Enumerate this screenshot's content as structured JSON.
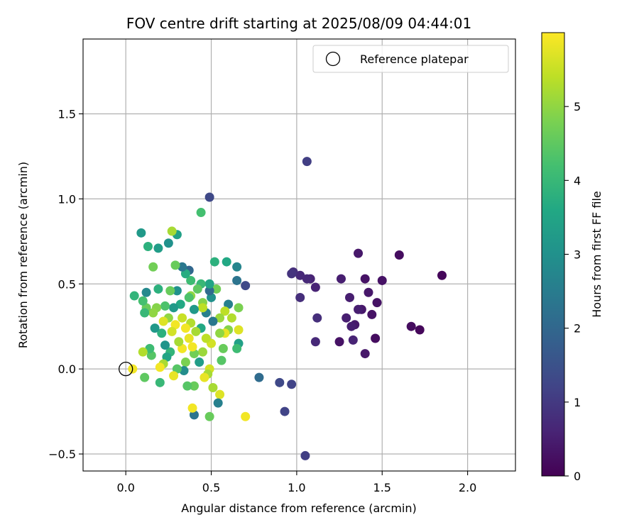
{
  "chart_data": {
    "type": "scatter",
    "title": "FOV centre drift starting at 2025/08/09 04:44:01",
    "xlabel": "Angular distance from reference (arcmin)",
    "ylabel": "Rotation from reference (arcmin)",
    "xlim": [
      -0.25,
      2.28
    ],
    "ylim": [
      -0.6,
      1.94
    ],
    "xticks": [
      0.0,
      0.5,
      1.0,
      1.5,
      2.0
    ],
    "xtick_labels": [
      "0.0",
      "0.5",
      "1.0",
      "1.5",
      "2.0"
    ],
    "yticks": [
      -0.5,
      0.0,
      0.5,
      1.0,
      1.5
    ],
    "ytick_labels": [
      "−0.5",
      "0.0",
      "0.5",
      "1.0",
      "1.5"
    ],
    "grid": true,
    "legend": {
      "position": "top-right",
      "entries": [
        "Reference platepar"
      ]
    },
    "colorbar": {
      "label": "Hours from first FF file",
      "colormap": "viridis",
      "range": [
        0,
        6
      ],
      "ticks": [
        0,
        1,
        2,
        3,
        4,
        5
      ],
      "tick_labels": [
        "0",
        "1",
        "2",
        "3",
        "4",
        "5"
      ]
    },
    "reference": {
      "x": 0.0,
      "y": 0.0
    },
    "points": [
      {
        "x": 1.85,
        "y": 0.55,
        "h": 0.1
      },
      {
        "x": 1.72,
        "y": 0.23,
        "h": 0.1
      },
      {
        "x": 1.67,
        "y": 0.25,
        "h": 0.2
      },
      {
        "x": 1.6,
        "y": 0.67,
        "h": 0.2
      },
      {
        "x": 1.5,
        "y": 0.52,
        "h": 0.3
      },
      {
        "x": 1.47,
        "y": 0.39,
        "h": 0.3
      },
      {
        "x": 1.46,
        "y": 0.18,
        "h": 0.2
      },
      {
        "x": 1.44,
        "y": 0.32,
        "h": 0.3
      },
      {
        "x": 1.42,
        "y": 0.45,
        "h": 0.4
      },
      {
        "x": 1.4,
        "y": 0.53,
        "h": 0.3
      },
      {
        "x": 1.4,
        "y": 0.09,
        "h": 0.4
      },
      {
        "x": 1.38,
        "y": 0.35,
        "h": 0.4
      },
      {
        "x": 1.36,
        "y": 0.35,
        "h": 0.5
      },
      {
        "x": 1.36,
        "y": 0.68,
        "h": 0.4
      },
      {
        "x": 1.34,
        "y": 0.26,
        "h": 0.4
      },
      {
        "x": 1.33,
        "y": 0.17,
        "h": 0.6
      },
      {
        "x": 1.32,
        "y": 0.25,
        "h": 0.5
      },
      {
        "x": 1.31,
        "y": 0.42,
        "h": 0.5
      },
      {
        "x": 1.29,
        "y": 0.3,
        "h": 0.5
      },
      {
        "x": 1.26,
        "y": 0.53,
        "h": 0.5
      },
      {
        "x": 1.25,
        "y": 0.16,
        "h": 0.3
      },
      {
        "x": 1.12,
        "y": 0.3,
        "h": 0.8
      },
      {
        "x": 1.11,
        "y": 0.48,
        "h": 0.6
      },
      {
        "x": 1.11,
        "y": 0.16,
        "h": 0.7
      },
      {
        "x": 1.08,
        "y": 0.53,
        "h": 0.6
      },
      {
        "x": 1.06,
        "y": 0.53,
        "h": 0.7
      },
      {
        "x": 1.06,
        "y": 1.22,
        "h": 1.1
      },
      {
        "x": 1.02,
        "y": 0.55,
        "h": 0.7
      },
      {
        "x": 1.02,
        "y": 0.42,
        "h": 0.8
      },
      {
        "x": 0.98,
        "y": 0.57,
        "h": 0.8
      },
      {
        "x": 0.97,
        "y": 0.56,
        "h": 0.9
      },
      {
        "x": 1.05,
        "y": -0.51,
        "h": 1.1
      },
      {
        "x": 0.97,
        "y": -0.09,
        "h": 1.2
      },
      {
        "x": 0.93,
        "y": -0.25,
        "h": 1.2
      },
      {
        "x": 0.9,
        "y": -0.08,
        "h": 1.3
      },
      {
        "x": 0.78,
        "y": -0.05,
        "h": 2.1
      },
      {
        "x": 0.7,
        "y": 0.49,
        "h": 1.3
      },
      {
        "x": 0.7,
        "y": -0.28,
        "h": 5.9
      },
      {
        "x": 0.65,
        "y": 0.6,
        "h": 2.7
      },
      {
        "x": 0.65,
        "y": 0.52,
        "h": 2.3
      },
      {
        "x": 0.66,
        "y": 0.15,
        "h": 3.4
      },
      {
        "x": 0.66,
        "y": 0.36,
        "h": 4.8
      },
      {
        "x": 0.65,
        "y": 0.12,
        "h": 4.1
      },
      {
        "x": 0.66,
        "y": 0.23,
        "h": 5.7
      },
      {
        "x": 0.6,
        "y": 0.38,
        "h": 2.6
      },
      {
        "x": 0.6,
        "y": 0.23,
        "h": 4.9
      },
      {
        "x": 0.62,
        "y": 0.3,
        "h": 5.3
      },
      {
        "x": 0.59,
        "y": 0.63,
        "h": 3.6
      },
      {
        "x": 0.58,
        "y": 0.34,
        "h": 5.4
      },
      {
        "x": 0.58,
        "y": 0.21,
        "h": 5.8
      },
      {
        "x": 0.57,
        "y": 0.12,
        "h": 4.6
      },
      {
        "x": 0.56,
        "y": 0.05,
        "h": 4.4
      },
      {
        "x": 0.55,
        "y": 0.21,
        "h": 5.0
      },
      {
        "x": 0.55,
        "y": 0.3,
        "h": 5.1
      },
      {
        "x": 0.55,
        "y": -0.15,
        "h": 5.7
      },
      {
        "x": 0.54,
        "y": -0.2,
        "h": 2.6
      },
      {
        "x": 0.53,
        "y": 0.47,
        "h": 4.7
      },
      {
        "x": 0.52,
        "y": 0.63,
        "h": 3.8
      },
      {
        "x": 0.51,
        "y": -0.11,
        "h": 5.2
      },
      {
        "x": 0.51,
        "y": 0.28,
        "h": 2.4
      },
      {
        "x": 0.5,
        "y": 0.42,
        "h": 3.0
      },
      {
        "x": 0.5,
        "y": 0.15,
        "h": 5.6
      },
      {
        "x": 0.49,
        "y": 0.46,
        "h": 2.1
      },
      {
        "x": 0.49,
        "y": 0.5,
        "h": 3.5
      },
      {
        "x": 0.49,
        "y": 1.01,
        "h": 1.3
      },
      {
        "x": 0.49,
        "y": 0.0,
        "h": 5.6
      },
      {
        "x": 0.49,
        "y": -0.28,
        "h": 4.6
      },
      {
        "x": 0.48,
        "y": -0.03,
        "h": 5.2
      },
      {
        "x": 0.47,
        "y": 0.18,
        "h": 5.4
      },
      {
        "x": 0.47,
        "y": 0.33,
        "h": 2.6
      },
      {
        "x": 0.46,
        "y": -0.05,
        "h": 5.8
      },
      {
        "x": 0.45,
        "y": 0.39,
        "h": 4.9
      },
      {
        "x": 0.45,
        "y": 0.36,
        "h": 5.4
      },
      {
        "x": 0.45,
        "y": 0.1,
        "h": 5.1
      },
      {
        "x": 0.44,
        "y": 0.92,
        "h": 4.2
      },
      {
        "x": 0.44,
        "y": 0.5,
        "h": 4.0
      },
      {
        "x": 0.44,
        "y": 0.24,
        "h": 3.6
      },
      {
        "x": 0.43,
        "y": 0.04,
        "h": 3.3
      },
      {
        "x": 0.42,
        "y": 0.47,
        "h": 4.5
      },
      {
        "x": 0.41,
        "y": 0.22,
        "h": 5.2
      },
      {
        "x": 0.4,
        "y": 0.35,
        "h": 3.2
      },
      {
        "x": 0.4,
        "y": 0.09,
        "h": 4.7
      },
      {
        "x": 0.4,
        "y": -0.1,
        "h": 4.6
      },
      {
        "x": 0.4,
        "y": -0.27,
        "h": 2.3
      },
      {
        "x": 0.39,
        "y": 0.13,
        "h": 5.9
      },
      {
        "x": 0.39,
        "y": -0.23,
        "h": 5.9
      },
      {
        "x": 0.38,
        "y": 0.43,
        "h": 5.0
      },
      {
        "x": 0.38,
        "y": 0.27,
        "h": 5.3
      },
      {
        "x": 0.38,
        "y": 0.52,
        "h": 4.1
      },
      {
        "x": 0.37,
        "y": 0.58,
        "h": 2.0
      },
      {
        "x": 0.37,
        "y": 0.42,
        "h": 4.3
      },
      {
        "x": 0.37,
        "y": 0.18,
        "h": 5.8
      },
      {
        "x": 0.36,
        "y": -0.1,
        "h": 4.4
      },
      {
        "x": 0.35,
        "y": 0.56,
        "h": 3.7
      },
      {
        "x": 0.35,
        "y": 0.04,
        "h": 4.8
      },
      {
        "x": 0.35,
        "y": 0.24,
        "h": 5.9
      },
      {
        "x": 0.34,
        "y": -0.01,
        "h": 2.9
      },
      {
        "x": 0.33,
        "y": 0.6,
        "h": 2.4
      },
      {
        "x": 0.33,
        "y": 0.3,
        "h": 5.5
      },
      {
        "x": 0.33,
        "y": 0.12,
        "h": 5.9
      },
      {
        "x": 0.32,
        "y": 0.38,
        "h": 3.6
      },
      {
        "x": 0.31,
        "y": 0.16,
        "h": 5.2
      },
      {
        "x": 0.3,
        "y": 0.79,
        "h": 3.4
      },
      {
        "x": 0.3,
        "y": 0.0,
        "h": 4.4
      },
      {
        "x": 0.3,
        "y": 0.46,
        "h": 3.0
      },
      {
        "x": 0.29,
        "y": 0.61,
        "h": 4.6
      },
      {
        "x": 0.29,
        "y": 0.26,
        "h": 5.9
      },
      {
        "x": 0.28,
        "y": 0.36,
        "h": 3.2
      },
      {
        "x": 0.28,
        "y": -0.04,
        "h": 5.8
      },
      {
        "x": 0.27,
        "y": 0.81,
        "h": 5.2
      },
      {
        "x": 0.27,
        "y": 0.22,
        "h": 5.6
      },
      {
        "x": 0.26,
        "y": 0.46,
        "h": 4.6
      },
      {
        "x": 0.26,
        "y": 0.1,
        "h": 3.9
      },
      {
        "x": 0.25,
        "y": 0.74,
        "h": 3.0
      },
      {
        "x": 0.25,
        "y": 0.3,
        "h": 5.0
      },
      {
        "x": 0.24,
        "y": 0.07,
        "h": 3.5
      },
      {
        "x": 0.23,
        "y": 0.37,
        "h": 4.3
      },
      {
        "x": 0.23,
        "y": 0.14,
        "h": 3.1
      },
      {
        "x": 0.22,
        "y": 0.03,
        "h": 5.2
      },
      {
        "x": 0.22,
        "y": 0.28,
        "h": 5.7
      },
      {
        "x": 0.21,
        "y": 0.21,
        "h": 3.8
      },
      {
        "x": 0.2,
        "y": -0.08,
        "h": 4.0
      },
      {
        "x": 0.2,
        "y": 0.01,
        "h": 5.9
      },
      {
        "x": 0.19,
        "y": 0.47,
        "h": 3.8
      },
      {
        "x": 0.19,
        "y": 0.71,
        "h": 3.3
      },
      {
        "x": 0.18,
        "y": 0.36,
        "h": 4.9
      },
      {
        "x": 0.17,
        "y": 0.24,
        "h": 3.2
      },
      {
        "x": 0.16,
        "y": 0.6,
        "h": 4.7
      },
      {
        "x": 0.16,
        "y": 0.33,
        "h": 5.0
      },
      {
        "x": 0.15,
        "y": 0.08,
        "h": 4.4
      },
      {
        "x": 0.14,
        "y": 0.12,
        "h": 4.1
      },
      {
        "x": 0.13,
        "y": 0.72,
        "h": 3.8
      },
      {
        "x": 0.12,
        "y": 0.45,
        "h": 2.8
      },
      {
        "x": 0.12,
        "y": 0.36,
        "h": 4.6
      },
      {
        "x": 0.11,
        "y": -0.05,
        "h": 4.5
      },
      {
        "x": 0.11,
        "y": 0.33,
        "h": 4.0
      },
      {
        "x": 0.1,
        "y": 0.1,
        "h": 5.3
      },
      {
        "x": 0.1,
        "y": 0.4,
        "h": 4.2
      },
      {
        "x": 0.09,
        "y": 0.8,
        "h": 3.2
      },
      {
        "x": 0.05,
        "y": 0.43,
        "h": 3.9
      },
      {
        "x": 0.04,
        "y": 0.0,
        "h": 5.9
      }
    ]
  }
}
